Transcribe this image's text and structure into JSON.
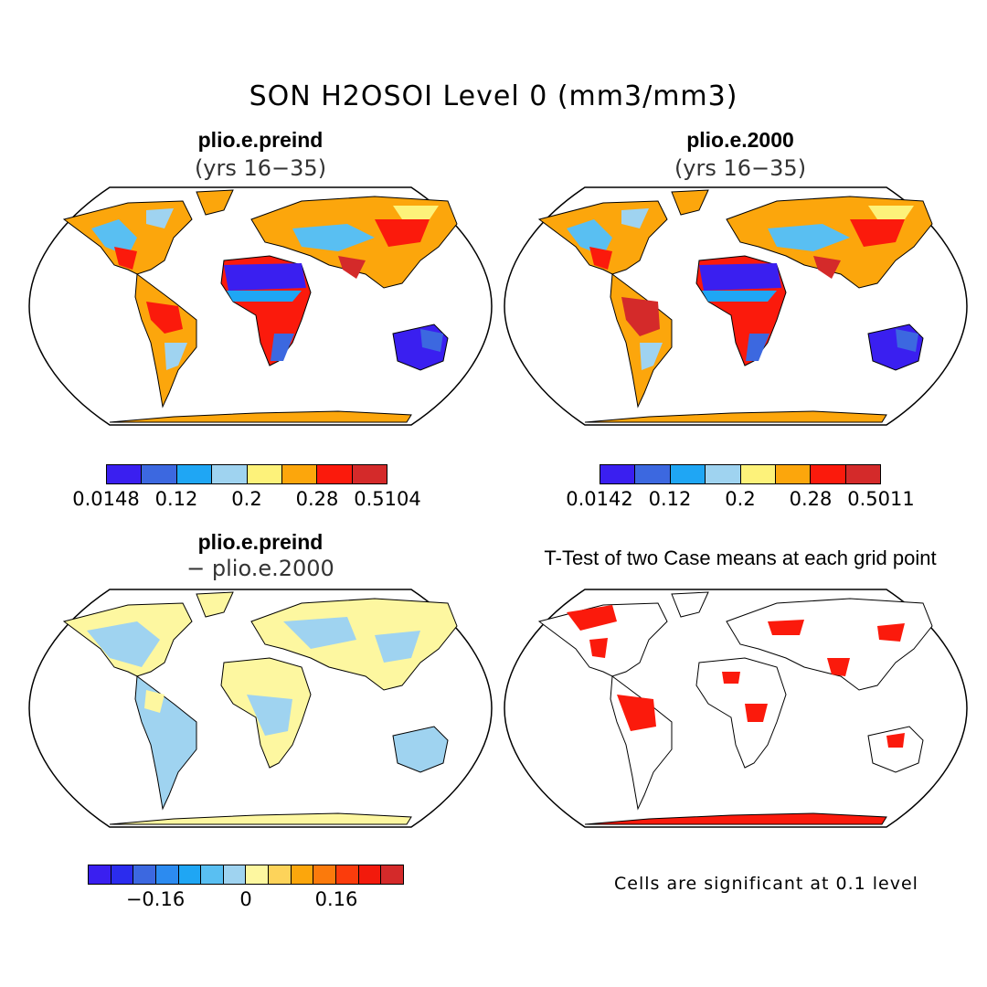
{
  "title": "SON H2OSOI Level 0 (mm3/mm3)",
  "panels": [
    {
      "name": "plio.e.preind",
      "subtitle": "(yrs 16−35)"
    },
    {
      "name": "plio.e.2000",
      "subtitle": "(yrs 16−35)"
    },
    {
      "name": "plio.e.preind",
      "subtitle": "− plio.e.2000"
    },
    {
      "name": "T-Test of two Case means at each grid point",
      "subtitle": ""
    }
  ],
  "colorbars": [
    {
      "colors": [
        "#3a1ff0",
        "#3c68e0",
        "#1fa6f4",
        "#9fd3f0",
        "#fdf27a",
        "#fca60c",
        "#fb1a0c",
        "#d42a2a"
      ],
      "labels": [
        "0.0148",
        "0.12",
        "0.2",
        "0.28",
        "0.5104"
      ]
    },
    {
      "colors": [
        "#3a1ff0",
        "#3c68e0",
        "#1fa6f4",
        "#9fd3f0",
        "#fdf27a",
        "#fca60c",
        "#fb1a0c",
        "#d42a2a"
      ],
      "labels": [
        "0.0142",
        "0.12",
        "0.2",
        "0.28",
        "0.5011"
      ]
    },
    {
      "colors": [
        "#3a1ff0",
        "#2b2cee",
        "#3c68e0",
        "#2c8bf0",
        "#1fa6f4",
        "#59bff2",
        "#9fd3f0",
        "#fdf7a0",
        "#fdd35a",
        "#fca60c",
        "#fb7a0c",
        "#fb3c0c",
        "#f21a0c",
        "#d42a2a"
      ],
      "labels": [
        "−0.16",
        "0",
        "0.16"
      ]
    }
  ],
  "significance_note": "Cells are significant at 0.1 level"
}
